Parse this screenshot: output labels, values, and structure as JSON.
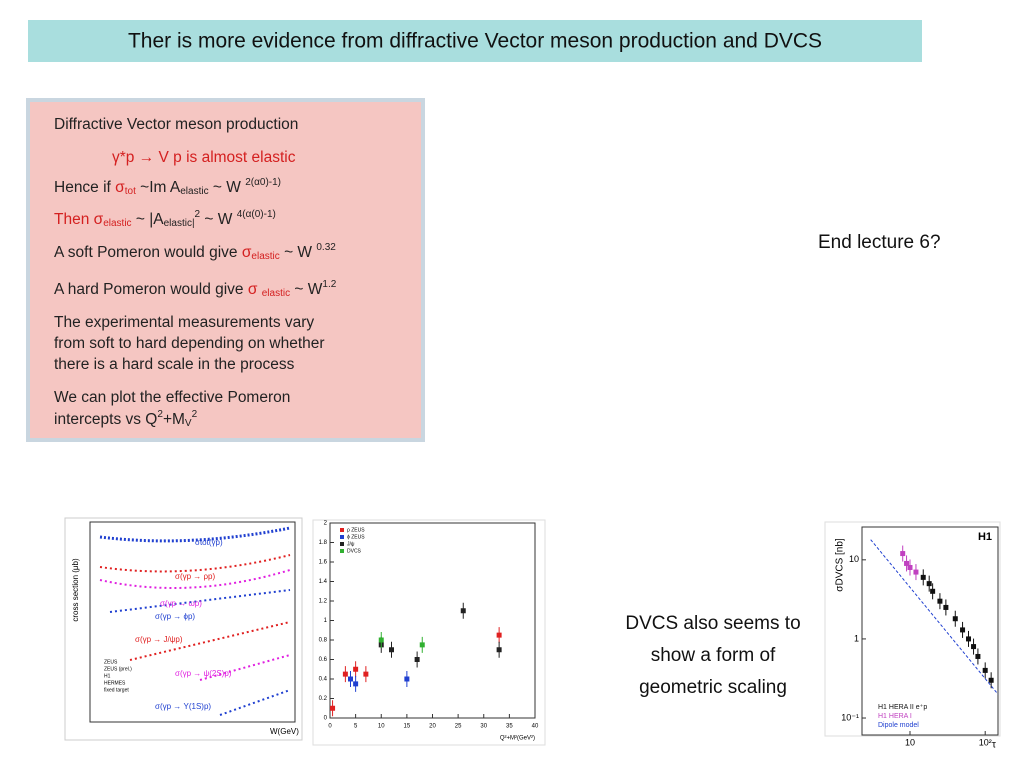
{
  "header": {
    "title": "Ther is more evidence from diffractive Vector meson production and DVCS"
  },
  "box": {
    "lines": [
      {
        "color": "#222222",
        "parts": [
          "Diffractive Vector meson production"
        ]
      },
      {
        "color": "#d42020",
        "indent": true,
        "parts": [
          "γ*p → V p    is almost elastic"
        ]
      },
      {
        "color": "#222222",
        "parts": [
          "Hence if ",
          {
            "text": "σ",
            "color": "#d42020"
          },
          {
            "text": "tot",
            "pos": "sub",
            "color": "#d42020"
          },
          " ~Im A",
          {
            "text": "elastic",
            "pos": "sub"
          },
          " ~ W ",
          {
            "text": "2(α0)-1)",
            "pos": "sup"
          }
        ]
      },
      {
        "color": "#222222",
        "parts": [
          {
            "text": "Then σ",
            "color": "#d42020"
          },
          {
            "text": "elastic",
            "pos": "sub",
            "color": "#d42020"
          },
          " ~  |A",
          {
            "text": "elastic|",
            "pos": "sub"
          },
          {
            "text": "2",
            "pos": "sup"
          },
          " ~ W ",
          {
            "text": "4(α(0)-1)",
            "pos": "sup"
          }
        ]
      },
      {
        "color": "#222222",
        "parts": [
          "A soft Pomeron would give  ",
          {
            "text": "σ",
            "color": "#d42020"
          },
          {
            "text": "elastic",
            "pos": "sub",
            "color": "#d42020"
          },
          " ~ W ",
          {
            "text": "0.32",
            "pos": "sup"
          }
        ]
      },
      {
        "color": "#222222",
        "parts": [
          "A hard Pomeron would give  ",
          {
            "text": "σ ",
            "color": "#d42020"
          },
          {
            "text": "elastic",
            "pos": "sub",
            "color": "#d42020"
          },
          " ~ W",
          {
            "text": "1.2",
            "pos": "sup"
          }
        ]
      },
      {
        "color": "#222222",
        "parts": [
          "The experimental measurements vary"
        ]
      },
      {
        "color": "#222222",
        "parts": [
          "from soft to hard depending on whether"
        ]
      },
      {
        "color": "#222222",
        "parts": [
          "there is a hard scale in the process"
        ]
      },
      {
        "color": "#222222",
        "parts": [
          "We can plot the effective Pomeron"
        ]
      },
      {
        "color": "#222222",
        "parts": [
          "intercepts vs Q",
          {
            "text": "2",
            "pos": "sup"
          },
          "+M",
          {
            "text": "V",
            "pos": "sub"
          },
          {
            "text": "2",
            "pos": "sup"
          }
        ]
      }
    ]
  },
  "notes": {
    "end": "End lecture 6?",
    "dvcs": [
      "DVCS also seems to",
      "show a form of",
      "geometric scaling"
    ]
  },
  "plot1": {
    "ylabel": "cross section (μb)",
    "xlabel": "W(GeV)",
    "reactions": [
      "σtot(γp)",
      "σ(γp → ρp)",
      "σ(γp → ωp)",
      "σ(γp → ϕp)",
      "σ(γp → J/ψp)",
      "σ(γp → ψ(2S)p)",
      "σ(γp → Υ(1S)p)"
    ],
    "legend": [
      "ZEUS",
      "ZEUS (prel.)",
      "H1",
      "HERMES",
      "fixed target"
    ]
  },
  "plot2": {
    "type": "scatter",
    "xlabel": "Q²+M²(GeV²)",
    "xlim": [
      0,
      40
    ],
    "ylim": [
      0,
      2
    ],
    "xticks": [
      0,
      5,
      10,
      15,
      20,
      25,
      30,
      35,
      40
    ],
    "yticks": [
      0,
      {
        "value": 0.2,
        "label": "0.2"
      },
      {
        "value": 0.4,
        "label": "0.4"
      },
      {
        "value": 0.6,
        "label": "0.6"
      },
      {
        "value": 0.8,
        "label": "0.8"
      },
      1,
      {
        "value": 1.2,
        "label": "1.2"
      },
      {
        "value": 1.4,
        "label": "1.4"
      },
      {
        "value": 1.6,
        "label": "1.6"
      },
      {
        "value": 1.8,
        "label": "1.8"
      },
      2
    ],
    "series": [
      {
        "name": "ρ ZEUS",
        "color": "#e02020",
        "x": [
          0.5,
          3,
          5,
          7,
          33
        ],
        "values": [
          0.1,
          0.45,
          0.5,
          0.45,
          0.85
        ]
      },
      {
        "name": "ϕ ZEUS",
        "color": "#2040d0",
        "x": [
          4,
          5,
          15
        ],
        "values": [
          0.4,
          0.35,
          0.4
        ]
      },
      {
        "name": "J/ψ",
        "color": "#222222",
        "x": [
          10,
          12,
          17,
          26,
          33
        ],
        "values": [
          0.75,
          0.7,
          0.6,
          1.1,
          0.7
        ]
      },
      {
        "name": "DVCS",
        "color": "#30b030",
        "x": [
          10,
          18
        ],
        "values": [
          0.8,
          0.75
        ]
      }
    ]
  },
  "plot3": {
    "type": "scatter",
    "badge": "H1",
    "ylabel": "σDVCS [nb]",
    "xlabel": "τ",
    "log": true,
    "xlim": [
      2.3,
      148
    ],
    "ylim": [
      0.061,
      26
    ],
    "xticks": [
      10,
      {
        "value": 100,
        "label": "10²"
      }
    ],
    "yticks": [
      {
        "value": 0.1,
        "label": "10⁻¹"
      },
      1,
      10
    ],
    "legend": [
      "H1 HERA II e⁺p",
      "H1 HERA I",
      "Dipole model"
    ],
    "series": [
      {
        "name": "H1 HERA II e⁺p",
        "color": "#111111",
        "x": [
          15,
          18,
          20,
          25,
          30,
          40,
          50,
          60,
          70,
          80,
          100,
          120
        ],
        "values": [
          6,
          5,
          4,
          3,
          2.5,
          1.8,
          1.3,
          1,
          0.8,
          0.6,
          0.4,
          0.3
        ]
      },
      {
        "name": "H1 HERA I",
        "color": "#c040c0",
        "x": [
          8,
          9,
          10,
          12
        ],
        "values": [
          12,
          9,
          8,
          7
        ]
      }
    ]
  }
}
